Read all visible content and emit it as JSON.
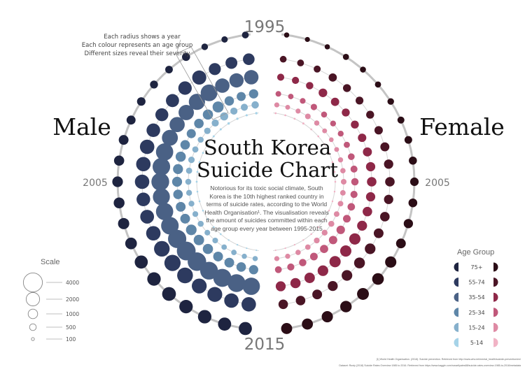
{
  "chart_data": {
    "type": "radial-bubble",
    "title": "South Korea\nSuicide Chart",
    "description": "Notorious for its toxic social climate, South Korea is the 10th highest ranked country in terms of suicide rates, according to the World Health Organisation¹. The visualisation reveals the amount of suicides committed within each age group every year between 1995-2015",
    "annotation": [
      "Each radius shows a year",
      "Each colour represents an age group",
      "Different sizes reveal their severity"
    ],
    "side_labels": {
      "male": "Male",
      "female": "Female"
    },
    "year_labels": {
      "start": "1995",
      "mid": "2005",
      "end": "2015"
    },
    "years": [
      1995,
      1996,
      1997,
      1998,
      1999,
      2000,
      2001,
      2002,
      2003,
      2004,
      2005,
      2006,
      2007,
      2008,
      2009,
      2010,
      2011,
      2012,
      2013,
      2014,
      2015
    ],
    "age_groups": [
      "75+",
      "55-74",
      "35-54",
      "25-34",
      "15-24",
      "5-14"
    ],
    "colors": {
      "male": [
        "#1e2440",
        "#2d3a5f",
        "#4a6185",
        "#5e86a8",
        "#86b0cc",
        "#a6d3e8"
      ],
      "female": [
        "#2b0d16",
        "#4a1525",
        "#8e2848",
        "#c0587a",
        "#de8aa4",
        "#f1b3c5"
      ]
    },
    "male": [
      [
        520,
        450,
        480,
        720,
        640,
        700,
        800,
        900,
        1050,
        1150,
        1250,
        1300,
        1400,
        1500,
        1900,
        2000,
        2100,
        2000,
        2000,
        1900,
        1900
      ],
      [
        1500,
        1550,
        1600,
        2200,
        2000,
        1900,
        1850,
        2050,
        2300,
        2300,
        2300,
        2050,
        2100,
        2300,
        2700,
        2900,
        2750,
        2450,
        2450,
        2300,
        2300
      ],
      [
        2300,
        2250,
        2300,
        3100,
        2900,
        2600,
        2550,
        2800,
        3300,
        3400,
        3500,
        3200,
        3300,
        3400,
        3700,
        3900,
        3800,
        3500,
        3600,
        3500,
        3300
      ],
      [
        950,
        900,
        980,
        1350,
        1150,
        1000,
        920,
        1000,
        1150,
        1100,
        1100,
        1000,
        1050,
        1050,
        1250,
        1200,
        1150,
        1050,
        1050,
        1000,
        950
      ],
      [
        600,
        550,
        560,
        720,
        560,
        460,
        400,
        420,
        460,
        420,
        400,
        380,
        380,
        370,
        400,
        350,
        360,
        330,
        330,
        300,
        300
      ],
      [
        60,
        50,
        55,
        65,
        50,
        45,
        40,
        40,
        45,
        40,
        40,
        35,
        35,
        35,
        40,
        35,
        35,
        30,
        30,
        25,
        25
      ]
    ],
    "female": [
      [
        300,
        280,
        300,
        420,
        400,
        420,
        480,
        540,
        650,
        720,
        800,
        850,
        950,
        1050,
        1400,
        1500,
        1550,
        1450,
        1400,
        1350,
        1350
      ],
      [
        500,
        520,
        540,
        750,
        700,
        680,
        700,
        780,
        900,
        950,
        1000,
        950,
        1000,
        1050,
        1250,
        1300,
        1250,
        1100,
        1050,
        1000,
        1000
      ],
      [
        550,
        560,
        600,
        820,
        760,
        700,
        700,
        780,
        900,
        950,
        1000,
        950,
        1000,
        1100,
        1400,
        1400,
        1400,
        1250,
        1200,
        1150,
        1100
      ],
      [
        350,
        330,
        360,
        450,
        400,
        380,
        380,
        420,
        500,
        540,
        600,
        560,
        620,
        650,
        800,
        780,
        750,
        650,
        600,
        560,
        520
      ],
      [
        280,
        260,
        280,
        350,
        300,
        260,
        240,
        260,
        300,
        320,
        350,
        330,
        340,
        350,
        400,
        380,
        370,
        330,
        310,
        290,
        280
      ],
      [
        40,
        38,
        40,
        48,
        40,
        36,
        32,
        34,
        38,
        36,
        36,
        32,
        32,
        30,
        34,
        30,
        30,
        26,
        26,
        24,
        22
      ]
    ],
    "scale": {
      "title": "Scale",
      "values": [
        4000,
        2000,
        1000,
        500,
        100
      ]
    },
    "legend": {
      "title": "Age Group",
      "labels": [
        "75+",
        "55-74",
        "35-54",
        "25-34",
        "15-24",
        "5-14"
      ]
    },
    "credits": [
      "[1] World Health Organisation. (2018). Suicide prevention. Retrieved from http://www.who.int/mental_health/suicide-prevention/en/",
      "Dataset: Rusty (2018) Suicide Rates Overview 1985 to 2016. Retrieved from https://www.kaggle.com/russellyates88/suicide-rates-overview-1985-to-2016/metadata"
    ]
  }
}
